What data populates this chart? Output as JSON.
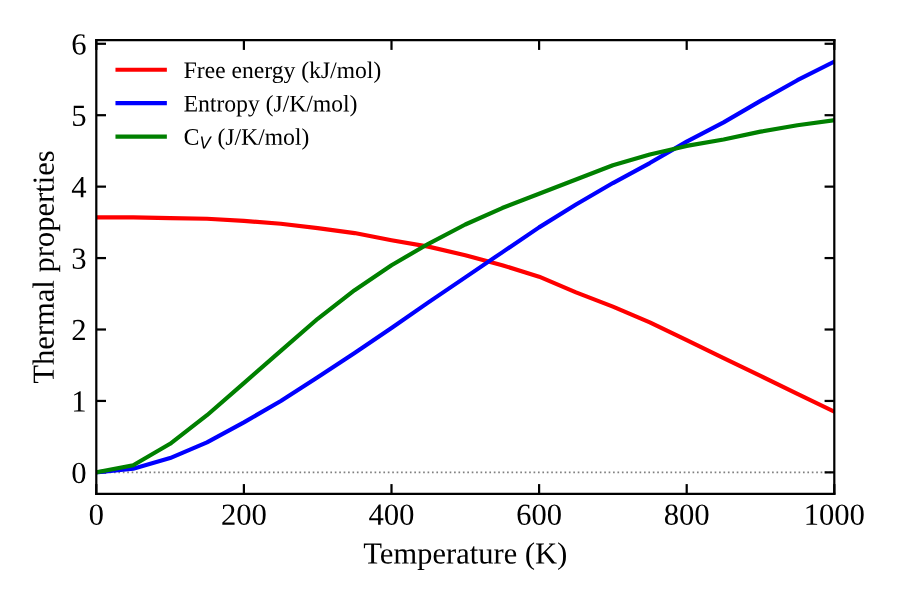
{
  "chart_data": {
    "type": "line",
    "xlabel": "Temperature (K)",
    "ylabel": "Thermal properties",
    "x": [
      0,
      50,
      100,
      150,
      200,
      250,
      300,
      350,
      400,
      450,
      500,
      550,
      600,
      650,
      700,
      750,
      800,
      850,
      900,
      950,
      1000
    ],
    "series": [
      {
        "name": "Free energy (kJ/mol)",
        "color": "#ff0000",
        "values": [
          3.57,
          3.57,
          3.56,
          3.55,
          3.52,
          3.48,
          3.42,
          3.35,
          3.25,
          3.16,
          3.04,
          2.9,
          2.74,
          2.52,
          2.32,
          2.1,
          1.85,
          1.6,
          1.35,
          1.1,
          0.85
        ]
      },
      {
        "name": "Entropy (J/K/mol)",
        "color": "#0000ff",
        "values": [
          0,
          0.05,
          0.2,
          0.42,
          0.7,
          1.0,
          1.33,
          1.67,
          2.02,
          2.38,
          2.73,
          3.08,
          3.43,
          3.75,
          4.05,
          4.33,
          4.63,
          4.9,
          5.2,
          5.49,
          5.75
        ]
      },
      {
        "name": "C$_{V}$ (J/K/mol)",
        "color": "#008000",
        "values": [
          0,
          0.1,
          0.4,
          0.8,
          1.25,
          1.7,
          2.15,
          2.55,
          2.9,
          3.2,
          3.47,
          3.7,
          3.9,
          4.1,
          4.3,
          4.45,
          4.57,
          4.66,
          4.77,
          4.86,
          4.93
        ]
      }
    ],
    "xlim": [
      0,
      1000
    ],
    "ylim": [
      -0.3,
      6.05
    ],
    "xticks": [
      0,
      200,
      400,
      600,
      800,
      1000
    ],
    "yticks": [
      0,
      1,
      2,
      3,
      4,
      5,
      6
    ],
    "ref_lines": [
      {
        "axis": "y",
        "value": 0,
        "color": "#808080",
        "line_style": "dotted"
      }
    ],
    "legend": "top left",
    "grid": false,
    "marker": "none",
    "line_style": "solid"
  }
}
